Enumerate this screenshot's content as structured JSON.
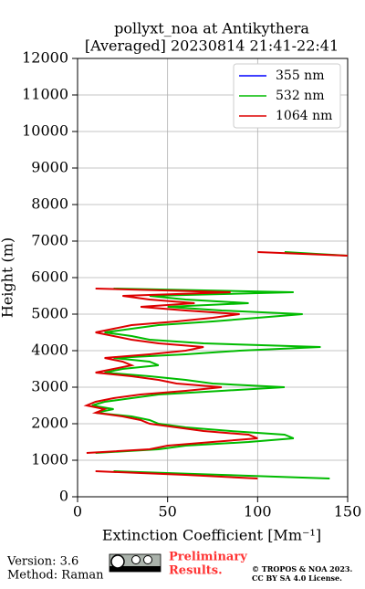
{
  "chart_data": {
    "type": "line",
    "title": "pollyxt_noa at Antikythera",
    "subtitle": "[Averaged] 20230814 21:41-22:41",
    "x_label": "Extinction Coefficient [Mm⁻¹]",
    "y_label": "Height (m)",
    "y": [
      500,
      600,
      700,
      800,
      900,
      1000,
      1100,
      1200,
      1300,
      1400,
      1500,
      1600,
      1700,
      1800,
      1900,
      2000,
      2100,
      2200,
      2300,
      2400,
      2500,
      2600,
      2700,
      2800,
      2900,
      3000,
      3100,
      3200,
      3300,
      3400,
      3500,
      3600,
      3700,
      3800,
      3900,
      4000,
      4100,
      4200,
      4300,
      4400,
      4500,
      4600,
      4700,
      4800,
      4900,
      5000,
      5100,
      5200,
      5300,
      5400,
      5500,
      5600,
      5700,
      5800,
      5900,
      6000,
      6100,
      6200,
      6300,
      6400,
      6500,
      6600,
      6700
    ],
    "series": [
      {
        "name": "355 nm",
        "color": "#0000ff",
        "values": [
          null,
          null,
          null,
          null,
          null,
          null,
          null,
          null,
          null,
          null,
          null,
          null,
          null,
          null,
          null,
          null,
          null,
          null,
          null,
          null,
          null,
          null,
          null,
          null,
          null,
          null,
          null,
          null,
          null,
          null,
          null,
          null,
          null,
          null,
          null,
          null,
          null,
          null,
          null,
          null,
          null,
          null,
          null,
          null,
          null,
          null,
          null,
          null,
          null,
          null,
          null,
          null,
          null,
          null,
          null,
          null,
          null,
          null,
          null,
          null,
          null,
          null,
          null
        ]
      },
      {
        "name": "532 nm",
        "color": "#00bb00",
        "values": [
          140,
          80,
          20,
          null,
          null,
          null,
          null,
          10,
          45,
          60,
          95,
          120,
          115,
          85,
          60,
          45,
          40,
          30,
          10,
          20,
          8,
          15,
          30,
          45,
          80,
          115,
          75,
          60,
          40,
          15,
          25,
          45,
          40,
          20,
          60,
          90,
          135,
          70,
          40,
          30,
          15,
          30,
          45,
          75,
          100,
          125,
          80,
          50,
          95,
          60,
          40,
          120,
          20,
          null,
          null,
          null,
          null,
          null,
          null,
          null,
          null,
          150,
          115
        ]
      },
      {
        "name": "1064 nm",
        "color": "#dd0000",
        "values": [
          100,
          60,
          10,
          null,
          null,
          null,
          null,
          5,
          40,
          50,
          75,
          100,
          95,
          70,
          55,
          40,
          35,
          25,
          10,
          15,
          5,
          10,
          20,
          35,
          60,
          80,
          55,
          45,
          30,
          10,
          20,
          30,
          25,
          15,
          40,
          60,
          70,
          45,
          30,
          20,
          10,
          20,
          30,
          55,
          75,
          90,
          60,
          35,
          65,
          40,
          25,
          85,
          10,
          null,
          null,
          null,
          null,
          null,
          null,
          null,
          null,
          150,
          100
        ]
      }
    ],
    "xlim": [
      0,
      150
    ],
    "xticks": [
      0,
      50,
      100,
      150
    ],
    "ylim": [
      0,
      12000
    ],
    "yticks": [
      0,
      1000,
      2000,
      3000,
      4000,
      5000,
      6000,
      7000,
      8000,
      9000,
      10000,
      11000,
      12000
    ],
    "grid": true,
    "legend": "upper right"
  },
  "footer": {
    "version": "Version: 3.6",
    "method": "Method: Raman",
    "preliminary": [
      "Preliminary",
      "Results."
    ],
    "copyright": "© TROPOS & NOA 2023.",
    "license": "CC BY SA 4.0 License."
  }
}
